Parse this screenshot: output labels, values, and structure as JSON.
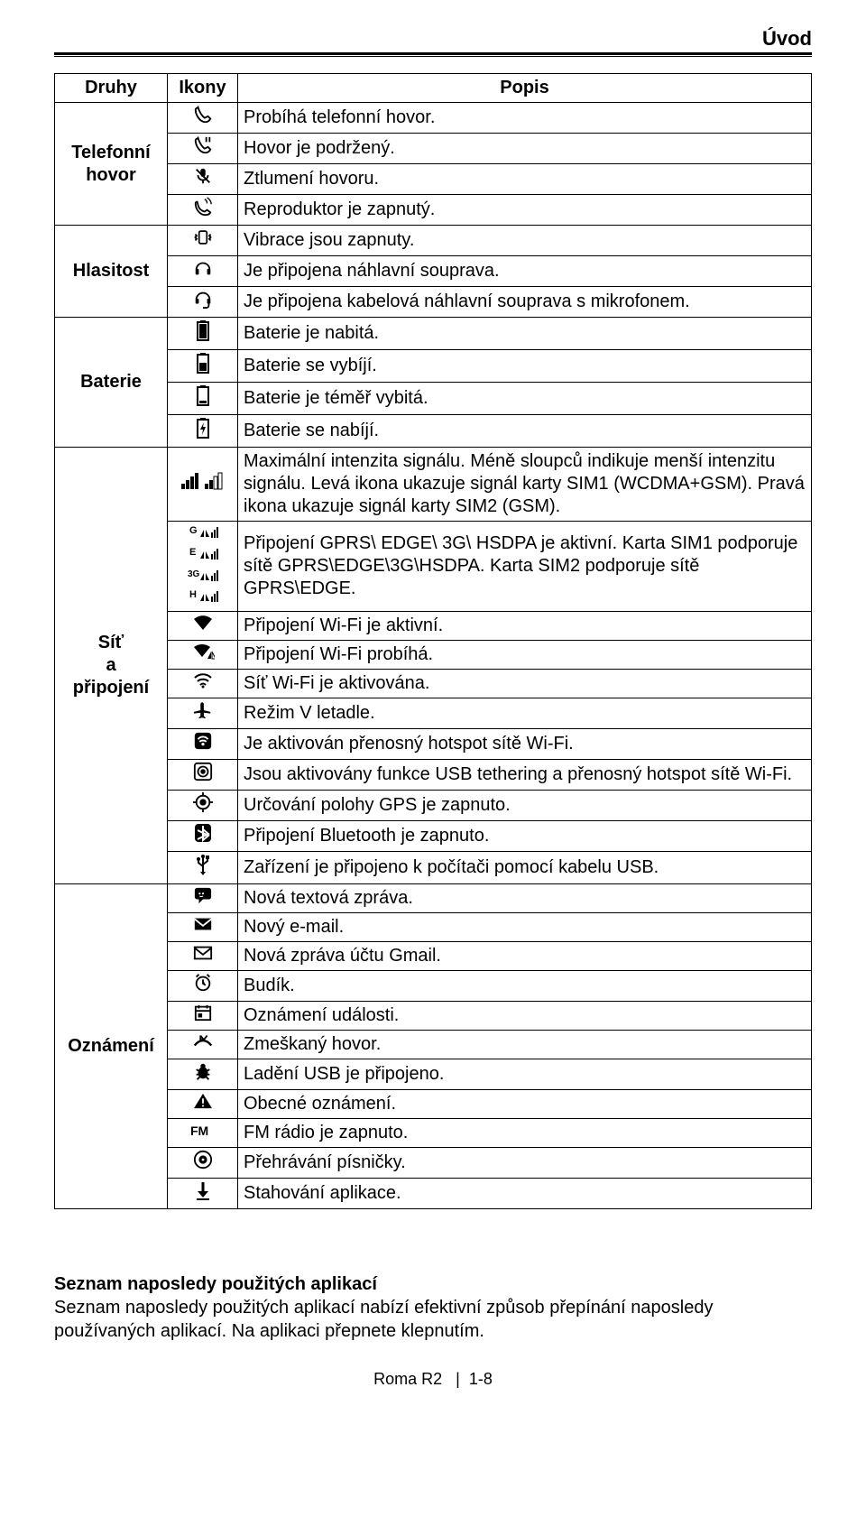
{
  "header": {
    "title": "Úvod"
  },
  "table": {
    "head": {
      "col1": "Druhy",
      "col2": "Ikony",
      "col3": "Popis"
    },
    "groups": [
      {
        "category": "Telefonní hovor",
        "rows": [
          {
            "icon": "phone",
            "desc": "Probíhá telefonní hovor."
          },
          {
            "icon": "phone-hold",
            "desc": "Hovor je podržený."
          },
          {
            "icon": "mic-mute",
            "desc": "Ztlumení hovoru."
          },
          {
            "icon": "speaker-phone",
            "desc": "Reproduktor je zapnutý."
          }
        ]
      },
      {
        "category": "Hlasitost",
        "rows": [
          {
            "icon": "vibrate",
            "desc": "Vibrace jsou zapnuty."
          },
          {
            "icon": "headset",
            "desc": "Je připojena náhlavní souprava."
          },
          {
            "icon": "headset-mic",
            "desc": "Je připojena kabelová náhlavní souprava s mikrofonem."
          }
        ]
      },
      {
        "category": "Baterie",
        "rows": [
          {
            "icon": "battery-full",
            "desc": "Baterie je nabitá."
          },
          {
            "icon": "battery-mid",
            "desc": "Baterie se vybíjí."
          },
          {
            "icon": "battery-low",
            "desc": "Baterie je téměř vybitá."
          },
          {
            "icon": "battery-charge",
            "desc": "Baterie se nabíjí."
          }
        ]
      },
      {
        "category": "Síť\na\npřipojení",
        "rows": [
          {
            "icon": "signal-bars",
            "desc": "Maximální intenzita signálu. Méně sloupců indikuje menší intenzitu signálu. Levá ikona ukazuje signál karty SIM1 (WCDMA+GSM). Pravá ikona ukazuje signál karty SIM2 (GSM)."
          },
          {
            "icon": "data-gprs",
            "desc": "Připojení GPRS\\ EDGE\\ 3G\\ HSDPA je aktivní. Karta SIM1 podporuje sítě GPRS\\EDGE\\3G\\HSDPA. Karta SIM2 podporuje sítě GPRS\\EDGE."
          },
          {
            "icon": "wifi",
            "desc": "Připojení Wi-Fi je aktivní."
          },
          {
            "icon": "wifi-connecting",
            "desc": "Připojení Wi-Fi probíhá."
          },
          {
            "icon": "wifi-on",
            "desc": "Síť Wi-Fi je aktivována."
          },
          {
            "icon": "airplane",
            "desc": "Režim V letadle."
          },
          {
            "icon": "hotspot",
            "desc": "Je aktivován přenosný hotspot sítě Wi-Fi."
          },
          {
            "icon": "tether",
            "desc": "Jsou aktivovány funkce USB tethering a přenosný hotspot sítě Wi-Fi."
          },
          {
            "icon": "gps",
            "desc": "Určování polohy GPS je zapnuto."
          },
          {
            "icon": "bluetooth",
            "desc": "Připojení Bluetooth je zapnuto."
          },
          {
            "icon": "usb",
            "desc": "Zařízení je připojeno k počítači pomocí kabelu USB."
          }
        ]
      },
      {
        "category": "Oznámení",
        "rows": [
          {
            "icon": "sms",
            "desc": "Nová textová zpráva."
          },
          {
            "icon": "email",
            "desc": "Nový e-mail."
          },
          {
            "icon": "gmail",
            "desc": "Nová zpráva účtu Gmail."
          },
          {
            "icon": "alarm",
            "desc": "Budík."
          },
          {
            "icon": "event",
            "desc": "Oznámení události."
          },
          {
            "icon": "missed-call",
            "desc": "Zmeškaný hovor."
          },
          {
            "icon": "usb-debug",
            "desc": "Ladění USB je připojeno."
          },
          {
            "icon": "warning",
            "desc": "Obecné oznámení."
          },
          {
            "icon": "fm",
            "desc": "FM rádio je zapnuto."
          },
          {
            "icon": "play-music",
            "desc": "Přehrávání písničky."
          },
          {
            "icon": "download",
            "desc": "Stahování aplikace."
          }
        ]
      }
    ]
  },
  "footer": {
    "heading": "Seznam naposledy použitých aplikací",
    "body": "Seznam naposledy použitých aplikací nabízí efektivní způsob přepínání naposledy používaných aplikací. Na aplikaci přepnete klepnutím."
  },
  "pager": {
    "model": "Roma R2",
    "sep": "|",
    "page": "1-8"
  },
  "colors": {
    "text": "#000000",
    "background": "#ffffff",
    "border": "#000000"
  },
  "icons_svg": {
    "phone": "<svg width='22' height='22' viewBox='0 0 24 24'><path fill='none' stroke='#000' stroke-width='2' d='M6 3c1 4 4 10 8 13l4-2 3 3c-1 2-3 4-6 4C8 21 3 12 3 6c0-1 1-2 2-2z'/></svg>",
    "phone-hold": "<svg width='22' height='22' viewBox='0 0 24 24'><path fill='none' stroke='#000' stroke-width='2' d='M6 3c1 4 4 10 8 13l4-2 3 3c-1 2-3 4-6 4C8 21 3 12 3 6c0-1 1-2 2-2z'/><path stroke='#000' stroke-width='2' d='M16 2v6M20 2v6'/></svg>",
    "mic-mute": "<svg width='22' height='22' viewBox='0 0 24 24'><rect x='9' y='3' width='6' height='10' rx='3' fill='#000'/><path fill='none' stroke='#000' stroke-width='2' d='M6 11a6 6 0 0012 0M12 17v4'/><line x1='4' y1='4' x2='20' y2='20' stroke='#000' stroke-width='2'/></svg>",
    "speaker-phone": "<svg width='22' height='22' viewBox='0 0 24 24'><path fill='none' stroke='#000' stroke-width='2' d='M6 10c1 4 4 7 8 8l3-2 4 3c-1 2-3 3-6 3C8 22 3 15 3 8c0-1 1-2 2-2z'/><path fill='none' stroke='#000' stroke-width='1.5' d='M14 3c2 1 3 3 3 5M17 1c3 2 5 5 5 8'/></svg>",
    "vibrate": "<svg width='24' height='22' viewBox='0 0 28 24'><rect x='9' y='4' width='10' height='16' rx='2' fill='none' stroke='#000' stroke-width='2'/><path stroke='#000' stroke-width='2' d='M4 8l2 2-2 2 2 2-2 2M24 8l-2 2 2 2-2 2 2 2'/></svg>",
    "headset": "<svg width='22' height='22' viewBox='0 0 24 24'><path fill='none' stroke='#000' stroke-width='2' d='M4 14a8 8 0 0116 0'/><rect x='3' y='13' width='4' height='7' rx='1' fill='#000'/><rect x='17' y='13' width='4' height='7' rx='1' fill='#000'/></svg>",
    "headset-mic": "<svg width='22' height='22' viewBox='0 0 24 24'><path fill='none' stroke='#000' stroke-width='2' d='M4 13a8 8 0 0116 0'/><rect x='3' y='12' width='4' height='6' rx='1' fill='#000'/><rect x='17' y='12' width='4' height='6' rx='1' fill='#000'/><path fill='none' stroke='#000' stroke-width='2' d='M19 18v2a3 3 0 01-3 3h-4'/></svg>",
    "battery-full": "<svg width='16' height='24' viewBox='0 0 16 24'><rect x='5' y='1' width='6' height='3' fill='#000'/><rect x='2' y='3' width='12' height='20' fill='none' stroke='#000' stroke-width='2'/><rect x='4' y='5' width='8' height='16' fill='#000'/></svg>",
    "battery-mid": "<svg width='16' height='24' viewBox='0 0 16 24'><rect x='5' y='1' width='6' height='3' fill='#000'/><rect x='2' y='3' width='12' height='20' fill='none' stroke='#000' stroke-width='2'/><rect x='4' y='12' width='8' height='9' fill='#000'/></svg>",
    "battery-low": "<svg width='16' height='24' viewBox='0 0 16 24'><rect x='5' y='1' width='6' height='3' fill='#000'/><rect x='2' y='3' width='12' height='20' fill='none' stroke='#000' stroke-width='2'/><rect x='4' y='18' width='8' height='3' fill='#000'/></svg>",
    "battery-charge": "<svg width='16' height='24' viewBox='0 0 16 24'><rect x='5' y='1' width='6' height='3' fill='#000'/><rect x='2' y='3' width='12' height='20' fill='none' stroke='#000' stroke-width='2'/><polygon points='9,6 5,14 8,14 7,20 11,11 8,11' fill='#000'/></svg>",
    "signal-bars": "<svg width='48' height='22' viewBox='0 0 48 22'><rect x='0' y='14' width='4' height='6' fill='#000'/><rect x='5' y='10' width='4' height='10' fill='#000'/><rect x='10' y='6' width='4' height='14' fill='#000'/><rect x='15' y='2' width='4' height='18' fill='#000'/><rect x='26' y='14' width='4' height='6' fill='#000'/><rect x='31' y='10' width='4' height='10' fill='#000'/><rect x='36' y='6' width='4' height='14' fill='none' stroke='#000'/><rect x='41' y='2' width='4' height='18' fill='none' stroke='#000'/></svg>",
    "data-gprs": "<svg width='34' height='88' viewBox='0 0 34 88'><text x='2' y='11' font-size='11' font-weight='bold' font-family='Arial'>G</text><polygon points='14,15 18,7 18,15' fill='#000'/><polygon points='20,7 24,15 20,15' fill='#000'/><rect x='26' y='10' width='2' height='6' fill='#000'/><rect x='29' y='7' width='2' height='9' fill='#000'/><rect x='32' y='4' width='2' height='12' fill='#000'/><text x='2' y='35' font-size='11' font-weight='bold' font-family='Arial'>E</text><polygon points='14,39 18,31 18,39' fill='#000'/><polygon points='20,31 24,39 20,39' fill='#000'/><rect x='26' y='34' width='2' height='6' fill='#000'/><rect x='29' y='31' width='2' height='9' fill='#000'/><rect x='32' y='28' width='2' height='12' fill='#000'/><text x='0' y='59' font-size='10' font-weight='bold' font-family='Arial'>3G</text><polygon points='14,63 18,55 18,63' fill='#000'/><polygon points='20,55 24,63 20,63' fill='#000'/><rect x='26' y='58' width='2' height='6' fill='#000'/><rect x='29' y='55' width='2' height='9' fill='#000'/><rect x='32' y='52' width='2' height='12' fill='#000'/><text x='2' y='82' font-size='11' font-weight='bold' font-family='Arial'>H</text><polygon points='14,86 18,78 18,86' fill='#000'/><polygon points='20,78 24,86 20,86' fill='#000'/><rect x='26' y='81' width='2' height='6' fill='#000'/><rect x='29' y='78' width='2' height='9' fill='#000'/><rect x='32' y='75' width='2' height='12' fill='#000'/></svg>",
    "wifi": "<svg width='24' height='20' viewBox='0 0 24 20'><path d='M12 18L2 6c6-5 14-5 20 0z' fill='#000'/></svg>",
    "wifi-connecting": "<svg width='26' height='20' viewBox='0 0 26 20'><path d='M12 16L3 5c5-4 13-4 18 0z' fill='#000'/><polygon points='18,18 22,10 22,18' fill='#000'/><polygon points='23,10 27,18 23,18' fill='none' stroke='#000'/></svg>",
    "wifi-on": "<svg width='24' height='20' viewBox='0 0 24 20'><path fill='none' stroke='#000' stroke-width='2' d='M3 7c5-5 13-5 18 0M6 11c3-3 9-3 12 0M9 15c2-2 4-2 6 0'/><circle cx='12' cy='17' r='1.5' fill='#000'/></svg>",
    "airplane": "<svg width='22' height='22' viewBox='0 0 24 24'><path d='M21 14l-8-2V4l-2-2-2 2v8l-8 2v2l8-1v4l-2 2v1l4-1 4 1v-1l-2-2v-4l8 1z' fill='#000'/></svg>",
    "hotspot": "<svg width='22' height='22' viewBox='0 0 24 24'><rect x='2' y='2' width='20' height='20' rx='4' fill='#000'/><path fill='none' stroke='#fff' stroke-width='2' d='M6 10c3-4 9-4 12 0M8 13c2-2 6-2 8 0'/><circle cx='12' cy='16' r='1.8' fill='#fff'/></svg>",
    "tether": "<svg width='22' height='22' viewBox='0 0 24 24'><rect x='2' y='2' width='20' height='20' rx='3' fill='none' stroke='#000' stroke-width='2'/><circle cx='12' cy='12' r='3' fill='#000'/><circle cx='12' cy='12' r='6' fill='none' stroke='#000' stroke-width='2'/></svg>",
    "gps": "<svg width='22' height='22' viewBox='0 0 24 24'><circle cx='12' cy='12' r='4' fill='#000'/><circle cx='12' cy='12' r='8' fill='none' stroke='#000' stroke-width='2'/><line x1='12' y1='0' x2='12' y2='5' stroke='#000' stroke-width='2'/><line x1='12' y1='19' x2='12' y2='24' stroke='#000' stroke-width='2'/><line x1='0' y1='12' x2='5' y2='12' stroke='#000' stroke-width='2'/><line x1='19' y1='12' x2='24' y2='12' stroke='#000' stroke-width='2'/></svg>",
    "bluetooth": "<svg width='20' height='22' viewBox='0 0 20 22'><rect x='1' y='1' width='18' height='20' rx='4' fill='#000'/><path fill='none' stroke='#fff' stroke-width='2' d='M10 3v16l6-5-12-6m0 10l12-6-6-5'/></svg>",
    "usb": "<svg width='18' height='24' viewBox='0 0 18 24'><circle cx='9' cy='3' r='2' fill='#000'/><line x1='9' y1='3' x2='9' y2='20' stroke='#000' stroke-width='2'/><path fill='none' stroke='#000' stroke-width='2' d='M9 14l-5-4V7M9 12l5-4V5'/><rect x='12' y='2' width='4' height='4' fill='#000'/><circle cx='4' cy='6' r='2' fill='#000'/><polygon points='9,24 6,20 12,20' fill='#000'/></svg>",
    "sms": "<svg width='22' height='20' viewBox='0 0 24 22'><rect x='2' y='2' width='20' height='14' rx='3' fill='#000'/><polygon points='7,15 7,21 13,15' fill='#000'/><circle cx='8' cy='9' r='1.2' fill='#fff'/><circle cx='12' cy='9' r='1.2' fill='#fff'/><path fill='none' stroke='#fff' stroke-width='1.2' d='M8 12c1 1 3 1 4 0'/></svg>",
    "email": "<svg width='22' height='18' viewBox='0 0 24 18'><rect x='2' y='2' width='20' height='14' fill='#000'/><path fill='none' stroke='#fff' stroke-width='2' d='M2 3l10 8 10-8'/></svg>",
    "gmail": "<svg width='22' height='18' viewBox='0 0 24 18'><rect x='2' y='2' width='20' height='14' fill='none' stroke='#000' stroke-width='2'/><path fill='none' stroke='#000' stroke-width='2' d='M2 3l10 8 10-8'/></svg>",
    "alarm": "<svg width='22' height='22' viewBox='0 0 24 24'><circle cx='12' cy='13' r='8' fill='none' stroke='#000' stroke-width='2'/><path stroke='#000' stroke-width='2' d='M12 8v5l3 2M4 5l3-3M20 5l-3-3'/></svg>",
    "event": "<svg width='20' height='20' viewBox='0 0 22 22'><rect x='2' y='4' width='18' height='16' fill='none' stroke='#000' stroke-width='2'/><line x1='2' y1='9' x2='20' y2='9' stroke='#000' stroke-width='2'/><rect x='5' y='12' width='5' height='5' fill='#000'/><line x1='6' y1='2' x2='6' y2='6' stroke='#000' stroke-width='2'/><line x1='16' y1='2' x2='16' y2='6' stroke='#000' stroke-width='2'/></svg>",
    "missed-call": "<svg width='24' height='20' viewBox='0 0 26 20'><path fill='none' stroke='#000' stroke-width='2.5' d='M3 15c6-8 14-8 20 0'/><path fill='none' stroke='#000' stroke-width='2' d='M10 3l4 5 4-5'/><polyline points='10,3 10,8 15,8' fill='none' stroke='#000' stroke-width='2'/></svg>",
    "usb-debug": "<svg width='22' height='22' viewBox='0 0 24 24'><ellipse cx='12' cy='14' rx='6' ry='7' fill='#000'/><circle cx='12' cy='6' r='3' fill='#000'/><line x1='4' y1='10' x2='8' y2='12' stroke='#000' stroke-width='2'/><line x1='20' y1='10' x2='16' y2='12' stroke='#000' stroke-width='2'/><line x1='4' y1='16' x2='7' y2='16' stroke='#000' stroke-width='2'/><line x1='20' y1='16' x2='17' y2='16' stroke='#000' stroke-width='2'/><line x1='5' y1='22' x2='8' y2='19' stroke='#000' stroke-width='2'/><line x1='19' y1='22' x2='16' y2='19' stroke='#000' stroke-width='2'/></svg>",
    "warning": "<svg width='22' height='20' viewBox='0 0 24 22'><polygon points='12,2 23,20 1,20' fill='#000'/><rect x='11' y='8' width='2' height='6' fill='#fff'/><rect x='11' y='16' width='2' height='2' fill='#fff'/></svg>",
    "fm": "<svg width='28' height='16' viewBox='0 0 28 16'><text x='0' y='13' font-size='14' font-weight='bold' font-family='Arial'>FM</text></svg>",
    "play-music": "<svg width='22' height='22' viewBox='0 0 24 24'><circle cx='12' cy='12' r='10' fill='none' stroke='#000' stroke-width='2'/><circle cx='12' cy='12' r='5' fill='#000'/><circle cx='12' cy='12' r='1.5' fill='#fff'/></svg>",
    "download": "<svg width='18' height='22' viewBox='0 0 18 22'><line x1='9' y1='2' x2='9' y2='14' stroke='#000' stroke-width='3'/><polygon points='3,12 15,12 9,19' fill='#000'/><line x1='2' y1='21' x2='16' y2='21' stroke='#000' stroke-width='2'/></svg>"
  }
}
